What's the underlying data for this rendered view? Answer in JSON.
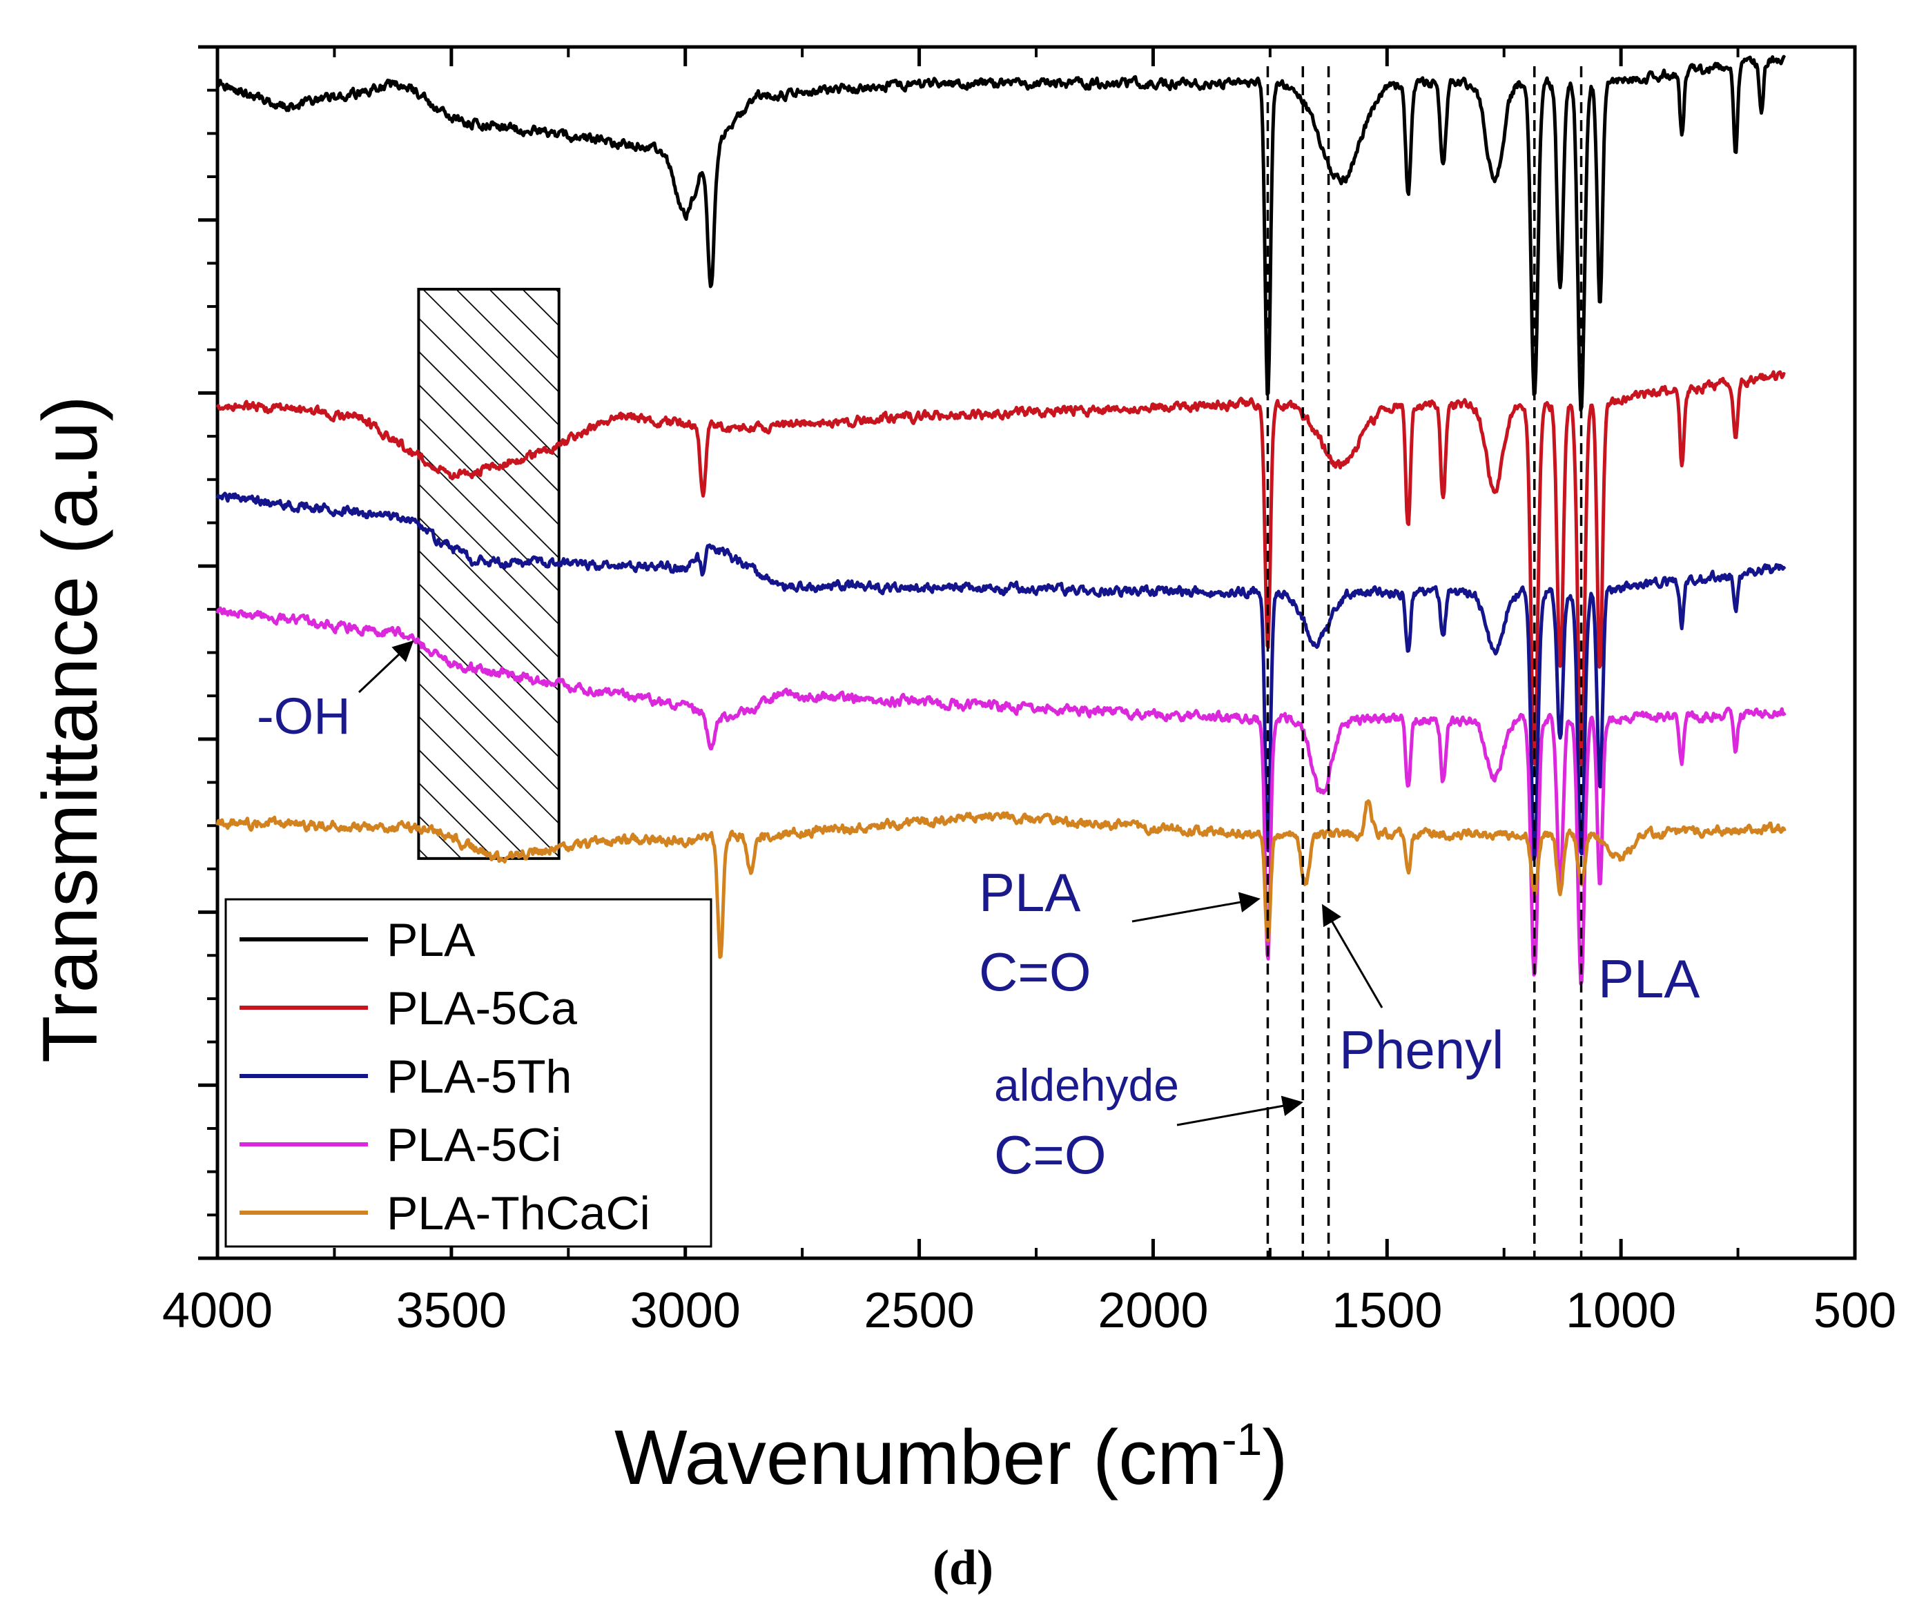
{
  "chart_data": {
    "type": "line",
    "xlabel": "Wavenumber (cm",
    "xlabel_sup": "-1",
    "xlabel_close": ")",
    "ylabel": "Transmittance (a.u)",
    "xlim": [
      4000,
      500
    ],
    "x_ticks": [
      4000,
      3500,
      3000,
      2500,
      2000,
      1500,
      1000,
      500
    ],
    "caption_open": "(",
    "caption_letter": "d",
    "caption_close": ")",
    "colors": {
      "PLA": "#000000",
      "PLA-5Ca": "#c8141e",
      "PLA-5Th": "#14148c",
      "PLA-5Ci": "#dc28dc",
      "PLA-ThCaCi": "#d2821e",
      "annotation": "#1a1a8c"
    },
    "series": [
      {
        "name": "PLA",
        "baseline": 0.97,
        "trend": [
          [
            4000,
            0.0
          ],
          [
            3850,
            -0.02
          ],
          [
            3600,
            0.0
          ],
          [
            3500,
            -0.03
          ],
          [
            2950,
            -0.06
          ],
          [
            2850,
            -0.01
          ],
          [
            2500,
            0.0
          ],
          [
            1800,
            0.0
          ]
        ],
        "peaks": [
          [
            1755,
            0.26,
            8
          ],
          [
            3000,
            0.05,
            30
          ],
          [
            2945,
            0.11,
            10
          ],
          [
            1600,
            0.08,
            60
          ],
          [
            1455,
            0.09,
            8
          ],
          [
            1380,
            0.07,
            8
          ],
          [
            1270,
            0.08,
            25
          ],
          [
            1185,
            0.26,
            10
          ],
          [
            1130,
            0.17,
            9
          ],
          [
            1085,
            0.27,
            10
          ],
          [
            1045,
            0.18,
            8
          ],
          [
            870,
            0.05,
            6
          ],
          [
            755,
            0.07,
            6
          ],
          [
            700,
            0.04,
            6
          ]
        ],
        "tail": 0.99
      },
      {
        "name": "PLA-5Ca",
        "baseline": 0.705,
        "trend": [
          [
            4000,
            0.0
          ],
          [
            3700,
            -0.01
          ],
          [
            3500,
            -0.06
          ],
          [
            3300,
            -0.04
          ],
          [
            3150,
            -0.01
          ],
          [
            2900,
            -0.02
          ],
          [
            2500,
            -0.01
          ],
          [
            1800,
            0.0
          ]
        ],
        "peaks": [
          [
            1755,
            0.2,
            8
          ],
          [
            2962,
            0.06,
            8
          ],
          [
            1600,
            0.05,
            60
          ],
          [
            1455,
            0.1,
            7
          ],
          [
            1380,
            0.08,
            7
          ],
          [
            1270,
            0.07,
            25
          ],
          [
            1185,
            0.3,
            10
          ],
          [
            1130,
            0.22,
            9
          ],
          [
            1085,
            0.3,
            10
          ],
          [
            1045,
            0.22,
            8
          ],
          [
            870,
            0.06,
            6
          ],
          [
            755,
            0.05,
            6
          ]
        ],
        "tail": 0.73
      },
      {
        "name": "PLA-5Th",
        "baseline": 0.63,
        "trend": [
          [
            4000,
            0.0
          ],
          [
            3600,
            -0.02
          ],
          [
            3450,
            -0.055
          ],
          [
            3000,
            -0.06
          ],
          [
            2950,
            -0.04
          ],
          [
            2800,
            -0.075
          ],
          [
            1800,
            -0.08
          ]
        ],
        "peaks": [
          [
            1755,
            0.22,
            8
          ],
          [
            2962,
            0.02,
            8
          ],
          [
            1650,
            0.04,
            40
          ],
          [
            1455,
            0.05,
            7
          ],
          [
            1380,
            0.04,
            7
          ],
          [
            1270,
            0.05,
            25
          ],
          [
            1185,
            0.22,
            10
          ],
          [
            1130,
            0.12,
            9
          ],
          [
            1085,
            0.22,
            10
          ],
          [
            1045,
            0.16,
            8
          ],
          [
            870,
            0.04,
            6
          ],
          [
            755,
            0.03,
            6
          ]
        ],
        "tail": 0.65
      },
      {
        "name": "PLA-5Ci",
        "baseline": 0.535,
        "trend": [
          [
            4000,
            0.0
          ],
          [
            3600,
            -0.02
          ],
          [
            3500,
            -0.045
          ],
          [
            3000,
            -0.08
          ],
          [
            2900,
            -0.09
          ],
          [
            2800,
            -0.07
          ],
          [
            1800,
            -0.09
          ]
        ],
        "peaks": [
          [
            1755,
            0.2,
            8
          ],
          [
            2945,
            0.03,
            12
          ],
          [
            1640,
            0.06,
            30
          ],
          [
            1455,
            0.06,
            7
          ],
          [
            1380,
            0.05,
            7
          ],
          [
            1270,
            0.05,
            25
          ],
          [
            1185,
            0.21,
            10
          ],
          [
            1130,
            0.14,
            9
          ],
          [
            1085,
            0.22,
            10
          ],
          [
            1045,
            0.14,
            8
          ],
          [
            870,
            0.04,
            6
          ],
          [
            755,
            0.03,
            6
          ]
        ],
        "tail": 0.54
      },
      {
        "name": "PLA-ThCaCi",
        "baseline": 0.36,
        "trend": [
          [
            4000,
            0.0
          ],
          [
            3550,
            -0.005
          ],
          [
            3400,
            -0.03
          ],
          [
            3150,
            -0.015
          ],
          [
            3050,
            -0.015
          ],
          [
            2800,
            -0.01
          ],
          [
            2350,
            0.005
          ],
          [
            1800,
            -0.01
          ]
        ],
        "peaks": [
          [
            1755,
            0.09,
            8
          ],
          [
            2925,
            0.1,
            8
          ],
          [
            2860,
            0.03,
            10
          ],
          [
            1675,
            0.04,
            12
          ],
          [
            1540,
            -0.03,
            10
          ],
          [
            1455,
            0.03,
            7
          ],
          [
            1185,
            0.05,
            10
          ],
          [
            1130,
            0.05,
            9
          ],
          [
            1085,
            0.04,
            10
          ],
          [
            1000,
            0.02,
            30
          ]
        ],
        "tail": 0.365
      }
    ],
    "ref_lines": [
      1755,
      1680,
      1625,
      1185,
      1085
    ],
    "hatched_region": {
      "from": 3570,
      "to": 3270,
      "y_top": 0.8,
      "y_bottom": 0.33
    },
    "annotations": [
      {
        "text": "-OH"
      },
      {
        "text": "PLA"
      },
      {
        "text": "C=O"
      },
      {
        "text": "aldehyde"
      },
      {
        "text": "C=O"
      },
      {
        "text": "Phenyl"
      },
      {
        "text": "PLA"
      }
    ],
    "legend": {
      "position": "bottom-left"
    }
  }
}
